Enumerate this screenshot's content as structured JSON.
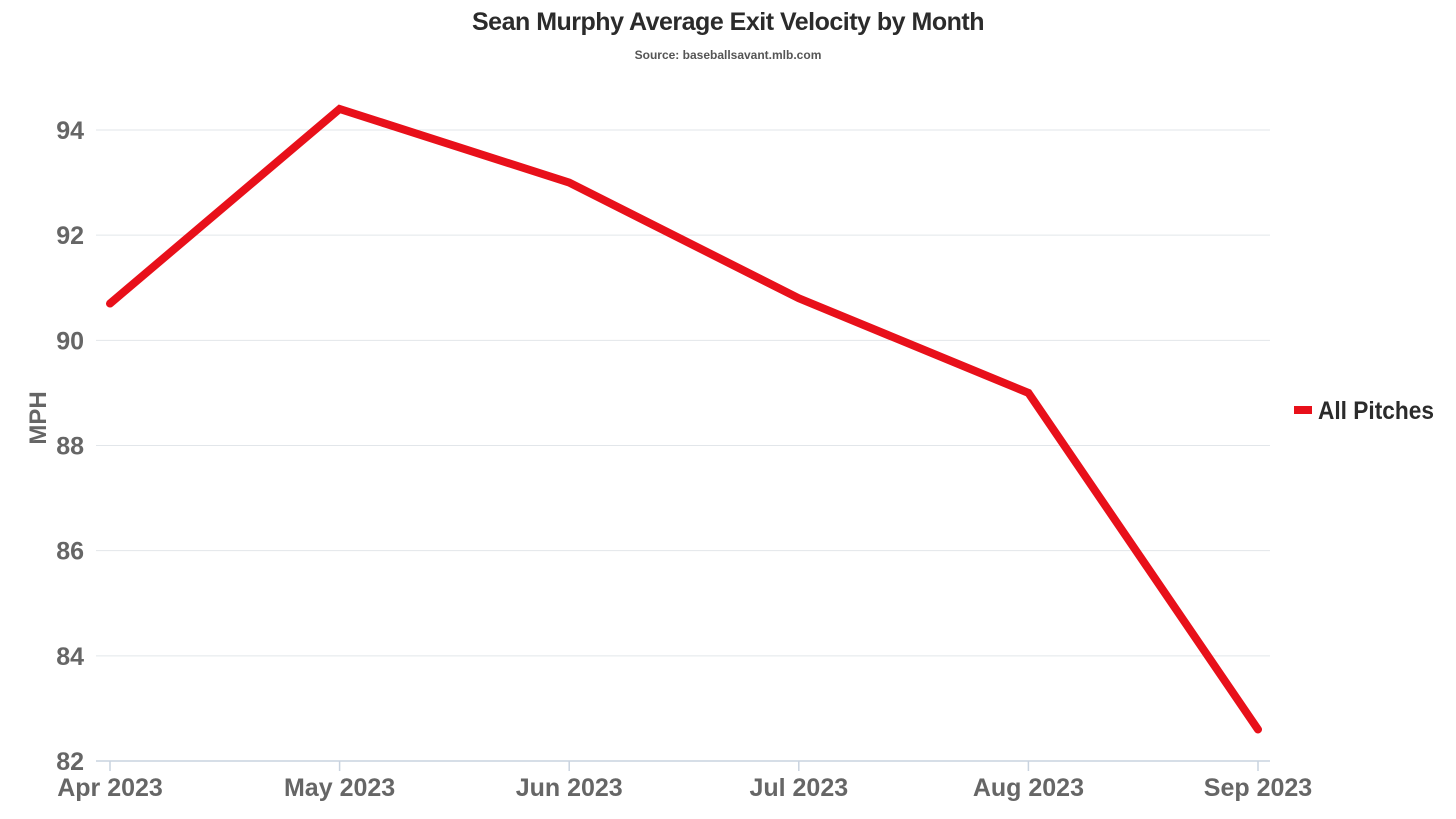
{
  "chart_data": {
    "type": "line",
    "title": "Sean Murphy Average Exit Velocity by Month",
    "subtitle": "Source: baseballsavant.mlb.com",
    "xlabel": "",
    "ylabel": "MPH",
    "categories": [
      "Apr 2023",
      "May 2023",
      "Jun 2023",
      "Jul 2023",
      "Aug 2023",
      "Sep 2023"
    ],
    "series": [
      {
        "name": "All Pitches",
        "values": [
          90.7,
          94.4,
          93.0,
          90.8,
          89.0,
          82.6
        ],
        "color": "#e8101a"
      }
    ],
    "ylim": [
      82,
      95
    ],
    "yticks": [
      82,
      84,
      86,
      88,
      90,
      92,
      94
    ],
    "grid": true,
    "legend_position": "right"
  },
  "colors": {
    "grid": "#e2e6ea",
    "axis": "#c9d3df",
    "tick_label": "#666666",
    "legend_text": "#2b2b2b"
  }
}
